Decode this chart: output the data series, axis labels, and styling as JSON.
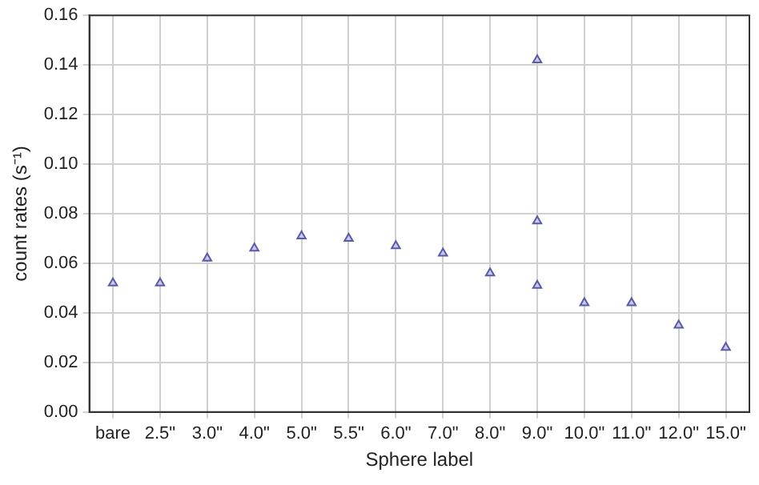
{
  "chart_data": {
    "type": "scatter",
    "xlabel": "Sphere label",
    "ylabel": "count rates (s⁻¹)",
    "categories": [
      "bare",
      "2.5\"",
      "3.0\"",
      "4.0\"",
      "5.0\"",
      "5.5\"",
      "6.0\"",
      "7.0\"",
      "8.0\"",
      "9.0\"",
      "10.0\"",
      "11.0\"",
      "12.0\"",
      "15.0\""
    ],
    "series": [
      {
        "color": "#5a5aaa",
        "values": [
          0.052,
          0.052,
          0.062,
          0.066,
          0.071,
          0.07,
          0.067,
          0.064,
          0.056,
          0.051,
          0.044,
          0.044,
          0.035,
          0.026
        ]
      },
      {
        "color": "#5a5aaa",
        "x": [
          "9.0\"",
          "9.0\""
        ],
        "values": [
          0.077,
          0.142
        ]
      }
    ],
    "ylim": [
      0,
      0.16
    ],
    "yticks": [
      {
        "value": 0,
        "label": "0.00"
      },
      {
        "value": 0.02,
        "label": "0.02"
      },
      {
        "value": 0.04,
        "label": "0.04"
      },
      {
        "value": 0.06,
        "label": "0.06"
      },
      {
        "value": 0.08,
        "label": "0.08"
      },
      {
        "value": 0.1,
        "label": "0.10"
      },
      {
        "value": 0.12,
        "label": "0.12"
      },
      {
        "value": 0.14,
        "label": "0.14"
      },
      {
        "value": 0.16,
        "label": "0.16"
      }
    ],
    "grid": true,
    "marker": "triangle",
    "legend": false
  }
}
